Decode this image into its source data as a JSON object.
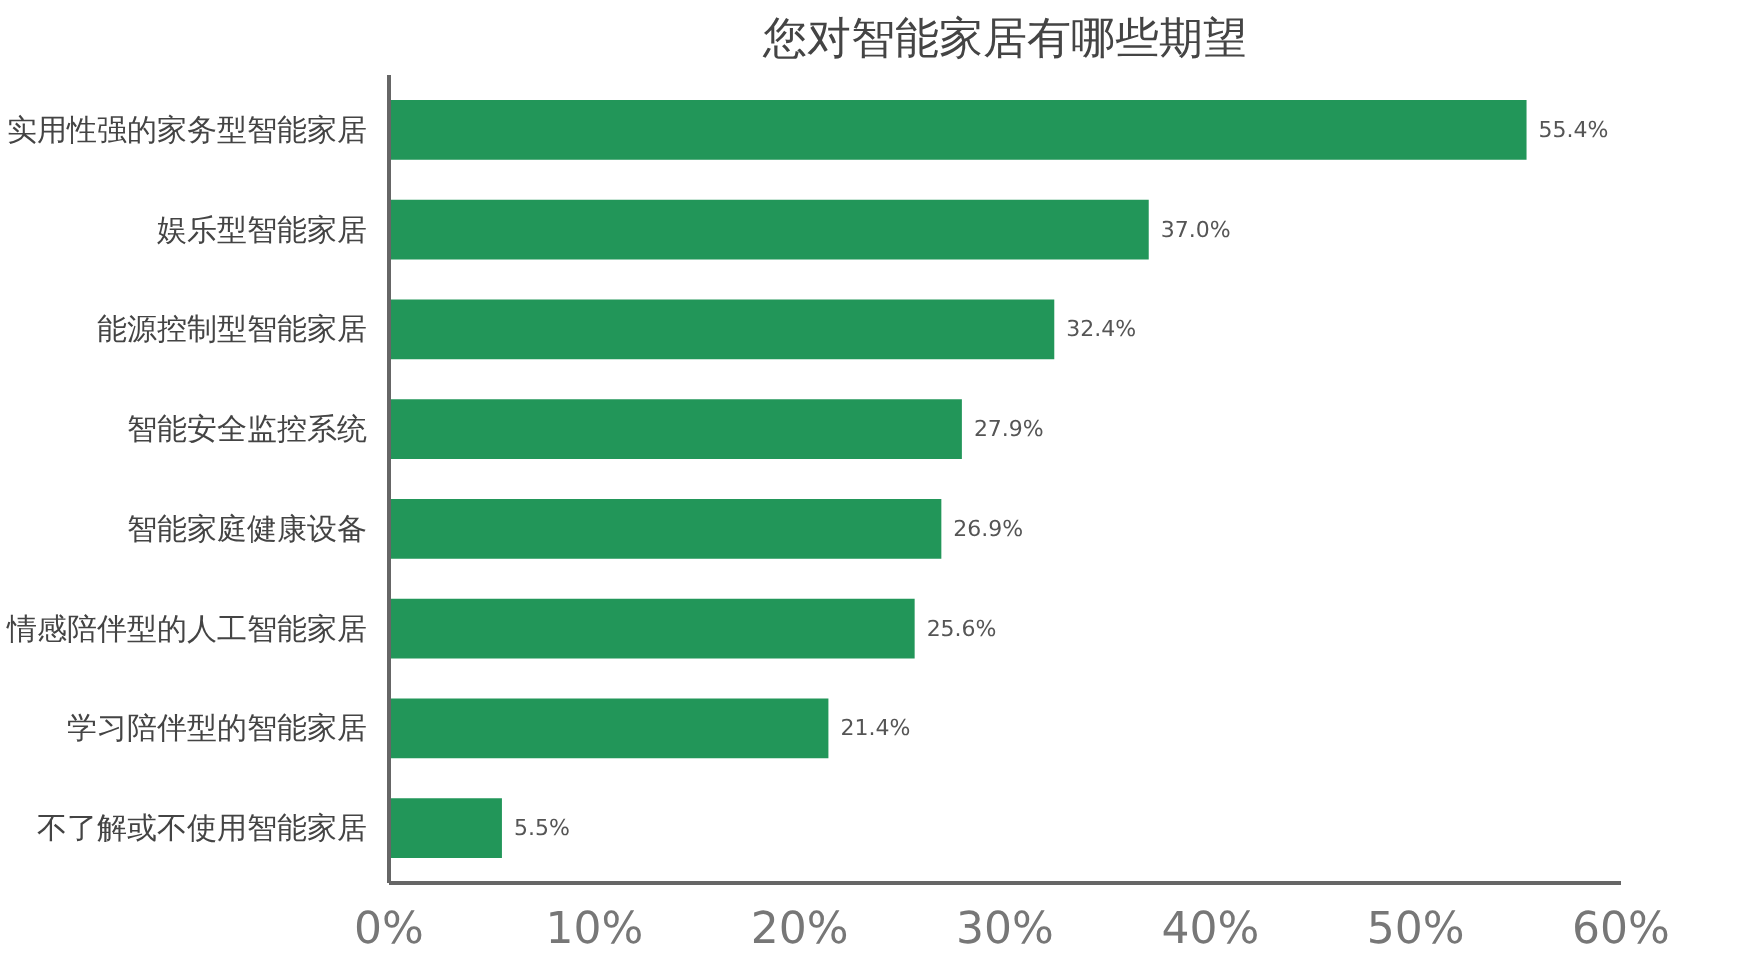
{
  "chart_data": {
    "type": "bar",
    "orientation": "horizontal",
    "title": "您对智能家居有哪些期望",
    "categories": [
      "实用性强的家务型智能家居",
      "娱乐型智能家居",
      "能源控制型智能家居",
      "智能安全监控系统",
      "智能家庭健康设备",
      "情感陪伴型的人工智能家居",
      "学习陪伴型的智能家居",
      "不了解或不使用智能家居"
    ],
    "values": [
      55.4,
      37.0,
      32.4,
      27.9,
      26.9,
      25.6,
      21.4,
      5.5
    ],
    "value_labels": [
      "55.4%",
      "37.0%",
      "32.4%",
      "27.9%",
      "26.9%",
      "25.6%",
      "21.4%",
      "5.5%"
    ],
    "color": "#229659",
    "xlim": [
      0,
      60
    ],
    "xticks": [
      {
        "value": 0,
        "label": "0%"
      },
      {
        "value": 10,
        "label": "10%"
      },
      {
        "value": 20,
        "label": "20%"
      },
      {
        "value": 30,
        "label": "30%"
      },
      {
        "value": 40,
        "label": "40%"
      },
      {
        "value": 50,
        "label": "50%"
      },
      {
        "value": 60,
        "label": "60%"
      }
    ],
    "grid": false
  }
}
